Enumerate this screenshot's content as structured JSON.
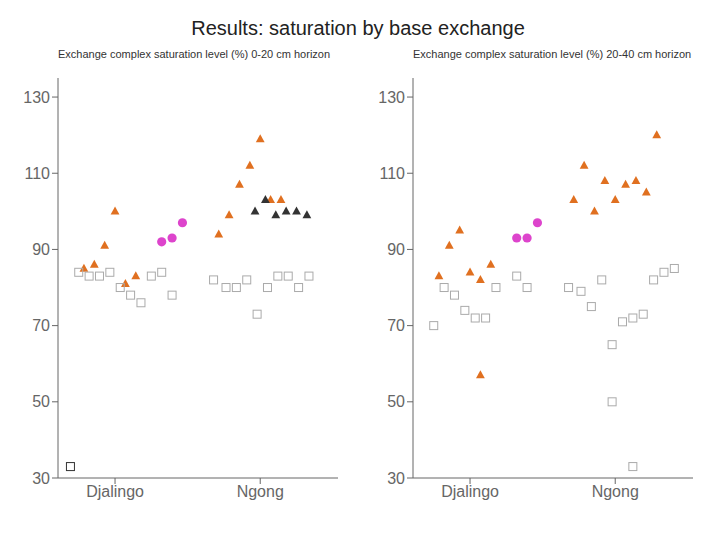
{
  "title": "Results: saturation by base exchange",
  "chart_data": [
    {
      "type": "scatter",
      "ylabel": "Exchange complex saturation level (%)  0-20 cm horizon",
      "grid": false,
      "xlim": [
        0.3,
        3.0
      ],
      "xticks": [
        {
          "value": 0.85,
          "label": "Djalingo"
        },
        {
          "value": 2.25,
          "label": "Ngong"
        }
      ],
      "ylim": [
        30,
        135
      ],
      "yticks": [
        30,
        50,
        70,
        90,
        110,
        130
      ],
      "series": [
        {
          "color": "#e07020",
          "marker": "triangle",
          "x": [
            0.55,
            0.65,
            0.75,
            0.85,
            0.95,
            1.05
          ],
          "values": [
            85,
            86,
            91,
            100,
            81,
            83
          ]
        },
        {
          "color": "#aaaaaa",
          "marker": "square-open",
          "x": [
            0.5,
            0.6,
            0.7,
            0.8,
            0.9,
            1.0,
            1.1,
            1.2
          ],
          "values": [
            84,
            83,
            83,
            84,
            80,
            78,
            76,
            83
          ]
        },
        {
          "color": "#333333",
          "marker": "square-open",
          "x": [
            0.42
          ],
          "values": [
            33
          ]
        },
        {
          "color": "#dd44cc",
          "marker": "circle",
          "x": [
            1.3,
            1.4,
            1.5
          ],
          "values": [
            92,
            93,
            97
          ]
        },
        {
          "color": "#aaaaaa",
          "marker": "square-open",
          "x": [
            1.3,
            1.4
          ],
          "values": [
            84,
            78
          ]
        },
        {
          "color": "#e07020",
          "marker": "triangle",
          "x": [
            1.85,
            1.95,
            2.05,
            2.15,
            2.25,
            2.35,
            2.45
          ],
          "values": [
            94,
            99,
            107,
            112,
            119,
            103,
            103
          ]
        },
        {
          "color": "#aaaaaa",
          "marker": "square-open",
          "x": [
            1.8,
            1.92,
            2.02,
            2.12,
            2.22,
            2.32,
            2.42,
            2.52,
            2.62,
            2.72
          ],
          "values": [
            82,
            80,
            80,
            82,
            73,
            80,
            83,
            83,
            80,
            83
          ]
        },
        {
          "color": "#333333",
          "marker": "triangle",
          "x": [
            2.2,
            2.3,
            2.4,
            2.5,
            2.6,
            2.7
          ],
          "values": [
            100,
            103,
            99,
            100,
            100,
            99
          ]
        }
      ]
    },
    {
      "type": "scatter",
      "ylabel": "Exchange complex saturation level (%)  20-40 cm horizon",
      "grid": false,
      "xlim": [
        0.3,
        3.0
      ],
      "xticks": [
        {
          "value": 0.85,
          "label": "Djalingo"
        },
        {
          "value": 2.25,
          "label": "Ngong"
        }
      ],
      "ylim": [
        30,
        135
      ],
      "yticks": [
        30,
        50,
        70,
        90,
        110,
        130
      ],
      "series": [
        {
          "color": "#e07020",
          "marker": "triangle",
          "x": [
            0.55,
            0.65,
            0.75,
            0.85,
            0.95,
            1.05
          ],
          "values": [
            83,
            91,
            95,
            84,
            82,
            86
          ]
        },
        {
          "color": "#e07020",
          "marker": "triangle",
          "x": [
            0.95
          ],
          "values": [
            57
          ]
        },
        {
          "color": "#aaaaaa",
          "marker": "square-open",
          "x": [
            0.5,
            0.6,
            0.7,
            0.8,
            0.9,
            1.0,
            1.1
          ],
          "values": [
            70,
            80,
            78,
            74,
            72,
            72,
            80
          ]
        },
        {
          "color": "#dd44cc",
          "marker": "circle",
          "x": [
            1.3,
            1.4,
            1.5
          ],
          "values": [
            93,
            93,
            97
          ]
        },
        {
          "color": "#aaaaaa",
          "marker": "square-open",
          "x": [
            1.3,
            1.4
          ],
          "values": [
            83,
            80
          ]
        },
        {
          "color": "#e07020",
          "marker": "triangle",
          "x": [
            1.85,
            1.95,
            2.05,
            2.15,
            2.25,
            2.35,
            2.45,
            2.55,
            2.65
          ],
          "values": [
            103,
            112,
            100,
            108,
            103,
            107,
            108,
            105,
            120
          ]
        },
        {
          "color": "#aaaaaa",
          "marker": "square-open",
          "x": [
            1.8,
            1.92,
            2.02,
            2.12,
            2.22,
            2.32,
            2.42,
            2.52,
            2.62,
            2.72,
            2.82
          ],
          "values": [
            80,
            79,
            75,
            82,
            65,
            71,
            72,
            73,
            82,
            84,
            85
          ]
        },
        {
          "color": "#aaaaaa",
          "marker": "square-open",
          "x": [
            2.22,
            2.42
          ],
          "values": [
            50,
            33
          ]
        }
      ]
    }
  ]
}
